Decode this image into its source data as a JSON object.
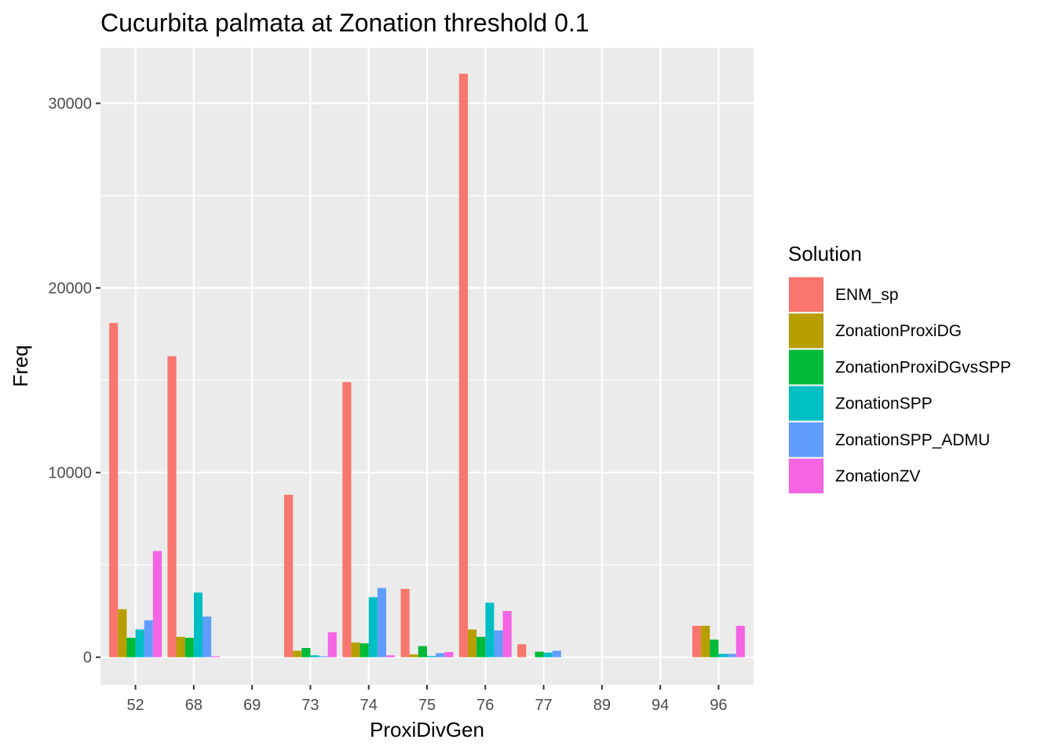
{
  "chart_data": {
    "type": "bar",
    "title": "Cucurbita palmata at Zonation threshold 0.1",
    "xlabel": "ProxiDivGen",
    "ylabel": "Freq",
    "categories": [
      "52",
      "68",
      "69",
      "73",
      "74",
      "75",
      "76",
      "77",
      "89",
      "94",
      "96"
    ],
    "ylim": [
      -1500,
      33000
    ],
    "yticks": [
      0,
      10000,
      20000,
      30000
    ],
    "ytick_labels": [
      "0",
      "10000",
      "20000",
      "30000"
    ],
    "grid": true,
    "legend_position": "right",
    "legend_title": "Solution",
    "series": [
      {
        "name": "ENM_sp",
        "color": "#F8766D",
        "values": [
          18100,
          16300,
          0,
          8800,
          14900,
          3700,
          31600,
          700,
          0,
          0,
          1700
        ]
      },
      {
        "name": "ZonationProxiDG",
        "color": "#B79F00",
        "values": [
          2600,
          1100,
          0,
          350,
          800,
          150,
          1500,
          0,
          0,
          0,
          1700
        ]
      },
      {
        "name": "ZonationProxiDGvsSPP",
        "color": "#00BA38",
        "values": [
          1050,
          1050,
          0,
          500,
          750,
          600,
          1100,
          300,
          0,
          0,
          950
        ]
      },
      {
        "name": "ZonationSPP",
        "color": "#00BFC4",
        "values": [
          1500,
          3500,
          0,
          100,
          3250,
          60,
          2950,
          250,
          0,
          0,
          180
        ]
      },
      {
        "name": "ZonationSPP_ADMU",
        "color": "#619CFF",
        "values": [
          2000,
          2200,
          0,
          50,
          3750,
          220,
          1450,
          350,
          0,
          0,
          180
        ]
      },
      {
        "name": "ZonationZV",
        "color": "#F564E3",
        "values": [
          5750,
          50,
          0,
          1350,
          100,
          280,
          2500,
          0,
          0,
          0,
          1700
        ]
      }
    ]
  }
}
